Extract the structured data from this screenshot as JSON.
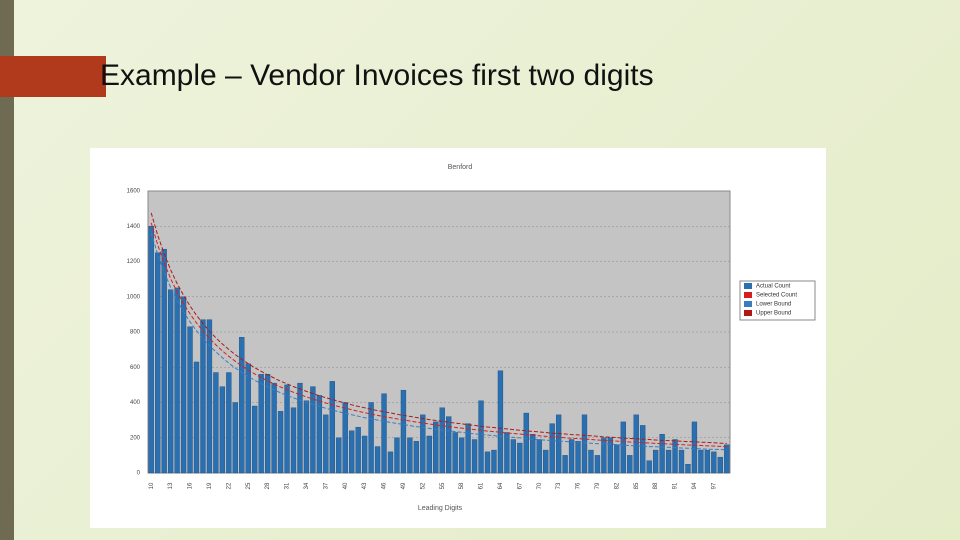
{
  "title": "Example – Vendor Invoices first two digits",
  "chart_data": {
    "type": "bar",
    "title": "Benford",
    "x_label": "Leading Digits",
    "categories": [
      "10",
      null,
      null,
      "13",
      null,
      null,
      "16",
      null,
      null,
      "19",
      null,
      null,
      "22",
      null,
      null,
      "25",
      null,
      null,
      "28",
      null,
      null,
      "31",
      null,
      null,
      "34",
      null,
      null,
      "37",
      null,
      null,
      "40",
      null,
      null,
      "43",
      null,
      null,
      "46",
      null,
      null,
      "49",
      null,
      null,
      "52",
      null,
      null,
      "55",
      null,
      null,
      "58",
      null,
      null,
      "61",
      null,
      null,
      "64",
      null,
      null,
      "67",
      null,
      null,
      "70",
      null,
      null,
      "73",
      null,
      null,
      "76",
      null,
      null,
      "79",
      null,
      null,
      "82",
      null,
      null,
      "85",
      null,
      null,
      "88",
      null,
      null,
      "91",
      null,
      null,
      "94",
      null,
      null,
      "97",
      null,
      null
    ],
    "ylim": [
      0,
      1600
    ],
    "yticks": [
      0,
      200,
      400,
      600,
      800,
      1000,
      1200,
      1400,
      1600
    ],
    "grid": true,
    "legend": "right",
    "series": [
      {
        "name": "Actual Count",
        "color": "#2a6fb0",
        "kind": "bar",
        "values": [
          1400,
          1250,
          1270,
          1040,
          1050,
          1000,
          830,
          630,
          870,
          870,
          570,
          490,
          570,
          400,
          770,
          620,
          380,
          560,
          560,
          510,
          350,
          500,
          370,
          510,
          410,
          490,
          440,
          330,
          520,
          200,
          400,
          240,
          260,
          210,
          400,
          150,
          450,
          120,
          200,
          470,
          200,
          180,
          330,
          210,
          290,
          370,
          320,
          230,
          200,
          280,
          190,
          410,
          120,
          130,
          580,
          230,
          190,
          170,
          340,
          220,
          190,
          130,
          280,
          330,
          100,
          190,
          180,
          330,
          130,
          100,
          200,
          200,
          160,
          290,
          100,
          330,
          270,
          70,
          130,
          220,
          130,
          190,
          130,
          50,
          290,
          130,
          130,
          120,
          90,
          160
        ]
      },
      {
        "name": "Selected Count",
        "color": "#d62020",
        "kind": "line",
        "values": [
          1419,
          1295,
          1192,
          1103,
          1027,
          961,
          903,
          851,
          805,
          764,
          727,
          693,
          662,
          634,
          608,
          584,
          562,
          542,
          523,
          505,
          488,
          473,
          458,
          445,
          432,
          420,
          408,
          397,
          387,
          377,
          368,
          359,
          350,
          342,
          335,
          327,
          320,
          314,
          307,
          301,
          295,
          289,
          284,
          278,
          273,
          268,
          264,
          259,
          255,
          250,
          246,
          242,
          238,
          235,
          231,
          227,
          224,
          221,
          217,
          214,
          211,
          208,
          205,
          203,
          200,
          197,
          195,
          192,
          190,
          187,
          185,
          183,
          181,
          178,
          176,
          174,
          172,
          170,
          168,
          166,
          165,
          163,
          161,
          159,
          158,
          156,
          154,
          153,
          151,
          150
        ]
      },
      {
        "name": "Lower Bound",
        "color": "#3a7cc0",
        "kind": "line",
        "values": [
          1362,
          1241,
          1140,
          1053,
          979,
          914,
          858,
          807,
          762,
          723,
          687,
          654,
          623,
          596,
          571,
          548,
          526,
          507,
          489,
          471,
          455,
          440,
          426,
          413,
          401,
          389,
          378,
          367,
          357,
          348,
          339,
          331,
          322,
          314,
          308,
          300,
          293,
          287,
          281,
          275,
          269,
          263,
          259,
          253,
          248,
          243,
          240,
          235,
          231,
          226,
          222,
          219,
          215,
          212,
          208,
          204,
          202,
          199,
          195,
          192,
          189,
          186,
          184,
          182,
          179,
          176,
          174,
          171,
          169,
          166,
          165,
          163,
          161,
          158,
          156,
          154,
          152,
          150,
          149,
          147,
          146,
          144,
          142,
          140,
          139,
          137,
          135,
          134,
          133,
          132
        ]
      },
      {
        "name": "Upper Bound",
        "color": "#b01818",
        "kind": "line",
        "values": [
          1476,
          1349,
          1244,
          1153,
          1075,
          1008,
          948,
          895,
          848,
          805,
          767,
          732,
          701,
          672,
          645,
          620,
          598,
          577,
          557,
          539,
          521,
          506,
          490,
          477,
          463,
          451,
          438,
          427,
          417,
          406,
          397,
          387,
          378,
          370,
          362,
          354,
          347,
          341,
          333,
          327,
          321,
          315,
          309,
          303,
          298,
          293,
          288,
          283,
          279,
          274,
          270,
          265,
          261,
          258,
          254,
          250,
          246,
          243,
          239,
          236,
          233,
          230,
          226,
          224,
          221,
          218,
          216,
          213,
          211,
          208,
          205,
          203,
          201,
          198,
          196,
          194,
          192,
          190,
          187,
          185,
          184,
          182,
          180,
          178,
          177,
          175,
          173,
          172,
          169,
          168
        ]
      }
    ]
  }
}
